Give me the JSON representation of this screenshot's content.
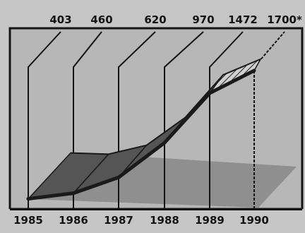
{
  "chart_data": {
    "type": "area",
    "categories": [
      "1985",
      "1986",
      "1987",
      "1988",
      "1989",
      "1990"
    ],
    "values": [
      403,
      460,
      620,
      970,
      1472,
      1700
    ],
    "value_labels": [
      "403",
      "460",
      "620",
      "970",
      "1472",
      "1700*"
    ],
    "title": "",
    "xlabel": "",
    "ylabel": "",
    "ylim": [
      400,
      1800
    ],
    "grid": false,
    "style": "3D ribbon area"
  },
  "colors": {
    "background": "#c6c6c6",
    "plot_background": "#b7b7b7",
    "floor": "#8f8f8f",
    "ribbon": "#555555",
    "line": "#1a1a1a",
    "frame": "#141414"
  }
}
